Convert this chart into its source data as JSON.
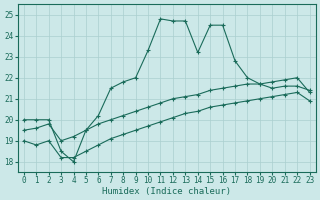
{
  "xlabel": "Humidex (Indice chaleur)",
  "x": [
    0,
    1,
    2,
    3,
    4,
    5,
    6,
    7,
    8,
    9,
    10,
    11,
    12,
    13,
    14,
    15,
    16,
    17,
    18,
    19,
    20,
    21,
    22,
    23
  ],
  "line_main": [
    20.0,
    20.0,
    20.0,
    18.5,
    18.0,
    19.5,
    20.2,
    21.5,
    21.8,
    22.0,
    23.3,
    24.8,
    24.7,
    24.7,
    23.2,
    24.5,
    24.5,
    22.8,
    22.0,
    21.7,
    21.5,
    21.6,
    21.6,
    21.4
  ],
  "line_reg_upper": [
    19.5,
    19.6,
    19.8,
    19.0,
    19.2,
    19.5,
    19.8,
    20.0,
    20.2,
    20.4,
    20.6,
    20.8,
    21.0,
    21.1,
    21.2,
    21.4,
    21.5,
    21.6,
    21.7,
    21.7,
    21.8,
    21.9,
    22.0,
    21.3
  ],
  "line_reg_lower": [
    19.0,
    18.8,
    19.0,
    18.2,
    18.2,
    18.5,
    18.8,
    19.1,
    19.3,
    19.5,
    19.7,
    19.9,
    20.1,
    20.3,
    20.4,
    20.6,
    20.7,
    20.8,
    20.9,
    21.0,
    21.1,
    21.2,
    21.3,
    20.9
  ],
  "color": "#1a6b5a",
  "bg_color": "#cce8e8",
  "grid_color": "#aacfcf",
  "ylim": [
    17.5,
    25.5
  ],
  "xlim": [
    -0.5,
    23.5
  ],
  "yticks": [
    18,
    19,
    20,
    21,
    22,
    23,
    24,
    25
  ],
  "xticks": [
    0,
    1,
    2,
    3,
    4,
    5,
    6,
    7,
    8,
    9,
    10,
    11,
    12,
    13,
    14,
    15,
    16,
    17,
    18,
    19,
    20,
    21,
    22,
    23
  ],
  "tick_fontsize": 5.5,
  "xlabel_fontsize": 6.5
}
